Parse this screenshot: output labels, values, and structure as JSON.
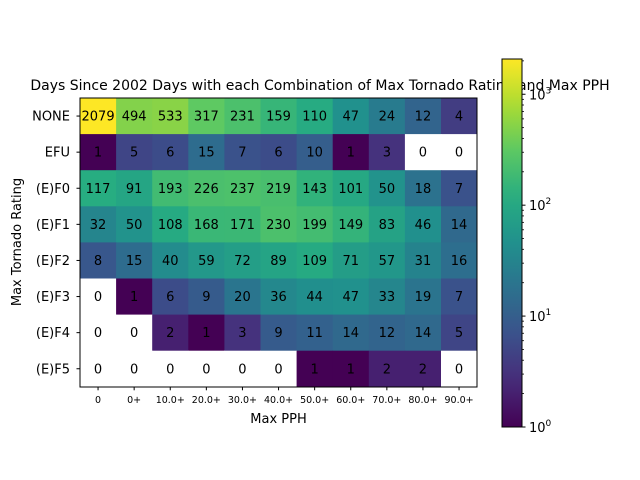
{
  "chart_data": {
    "type": "heatmap",
    "title": "Days Since 2002 Days with each Combination of Max Tornado Rating and Max PPH",
    "xlabel": "Max PPH",
    "ylabel": "Max Tornado Rating",
    "x_categories": [
      "0",
      "0+",
      "10.0+",
      "20.0+",
      "30.0+",
      "40.0+",
      "50.0+",
      "60.0+",
      "70.0+",
      "80.0+",
      "90.0+"
    ],
    "y_categories": [
      "NONE",
      "EFU",
      "(E)F0",
      "(E)F1",
      "(E)F2",
      "(E)F3",
      "(E)F4",
      "(E)F5"
    ],
    "values": [
      [
        2079,
        494,
        533,
        317,
        231,
        159,
        110,
        47,
        24,
        12,
        4
      ],
      [
        1,
        5,
        6,
        15,
        7,
        6,
        10,
        1,
        3,
        0,
        0
      ],
      [
        117,
        91,
        193,
        226,
        237,
        219,
        143,
        101,
        50,
        18,
        7
      ],
      [
        32,
        50,
        108,
        168,
        171,
        230,
        199,
        149,
        83,
        46,
        14
      ],
      [
        8,
        15,
        40,
        59,
        72,
        89,
        109,
        71,
        57,
        31,
        16
      ],
      [
        0,
        1,
        6,
        9,
        20,
        36,
        44,
        47,
        33,
        19,
        7
      ],
      [
        0,
        0,
        2,
        1,
        3,
        9,
        11,
        14,
        12,
        14,
        5
      ],
      [
        0,
        0,
        0,
        0,
        0,
        0,
        1,
        1,
        2,
        2,
        0
      ]
    ],
    "color_scale": "log",
    "colormap": "viridis",
    "zero_color": "#ffffff",
    "vmin": 1,
    "vmax": 2079,
    "colorbar_ticks": [
      {
        "value": 1,
        "base": "10",
        "exp": "0"
      },
      {
        "value": 10,
        "base": "10",
        "exp": "1"
      },
      {
        "value": 100,
        "base": "10",
        "exp": "2"
      },
      {
        "value": 1000,
        "base": "10",
        "exp": "3"
      }
    ],
    "grid": false,
    "legend": "colorbar-right"
  }
}
